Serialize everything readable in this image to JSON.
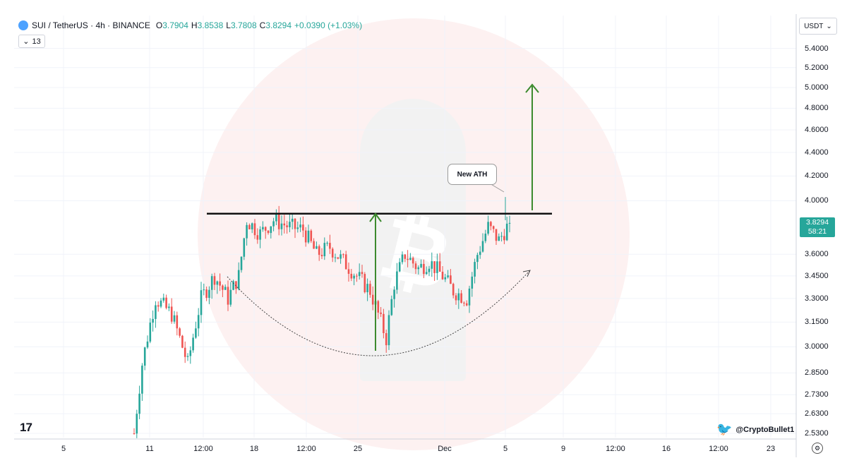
{
  "header": {
    "symbol": "SUI / TetherUS · 4h · BINANCE",
    "open_label": "O",
    "open": "3.7904",
    "high_label": "H",
    "high": "3.8538",
    "low_label": "L",
    "low": "3.7808",
    "close_label": "C",
    "close": "3.8294",
    "change": "+0.0390 (+1.03%)",
    "indicator_count": "13",
    "currency": "USDT"
  },
  "price_tag": {
    "price": "3.8294",
    "countdown": "58:21"
  },
  "annotation_label": "New ATH",
  "credit": "@CryptoBullet1",
  "logo": "17",
  "colors": {
    "up": "#26a69a",
    "down": "#ef5350",
    "arrow": "#3c8a2e",
    "resistance": "#111111"
  },
  "chart_data": {
    "type": "candlestick",
    "symbol": "SUI / TetherUS",
    "interval": "4h",
    "exchange": "BINANCE",
    "y_scale": "log",
    "ylim": [
      2.53,
      5.45
    ],
    "y_ticks": [
      "5.4000",
      "5.2000",
      "5.0000",
      "4.8000",
      "4.6000",
      "4.4000",
      "4.2000",
      "4.0000",
      "3.6000",
      "3.4500",
      "3.3000",
      "3.1500",
      "3.0000",
      "2.8500",
      "2.7300",
      "2.6300",
      "2.5300"
    ],
    "x_ticks": [
      "5",
      "11",
      "12:00",
      "18",
      "12:00",
      "25",
      "Dec",
      "5",
      "9",
      "12:00",
      "16",
      "12:00",
      "23"
    ],
    "resistance_level": 3.9,
    "last_price": 3.8294,
    "series": [
      {
        "t": 0,
        "y": 2.53
      },
      {
        "t": 3,
        "y": 2.9
      },
      {
        "t": 8,
        "y": 3.3
      },
      {
        "t": 14,
        "y": 3.2
      },
      {
        "t": 20,
        "y": 2.9
      },
      {
        "t": 25,
        "y": 3.3
      },
      {
        "t": 30,
        "y": 3.45
      },
      {
        "t": 35,
        "y": 3.3
      },
      {
        "t": 39,
        "y": 3.45
      },
      {
        "t": 42,
        "y": 3.85
      },
      {
        "t": 47,
        "y": 3.75
      },
      {
        "t": 52,
        "y": 3.85
      },
      {
        "t": 58,
        "y": 3.8
      },
      {
        "t": 63,
        "y": 3.78
      },
      {
        "t": 68,
        "y": 3.6
      },
      {
        "t": 73,
        "y": 3.65
      },
      {
        "t": 78,
        "y": 3.55
      },
      {
        "t": 83,
        "y": 3.45
      },
      {
        "t": 88,
        "y": 3.35
      },
      {
        "t": 92,
        "y": 3.15
      },
      {
        "t": 94,
        "y": 3.05
      },
      {
        "t": 97,
        "y": 3.4
      },
      {
        "t": 101,
        "y": 3.6
      },
      {
        "t": 106,
        "y": 3.5
      },
      {
        "t": 110,
        "y": 3.55
      },
      {
        "t": 115,
        "y": 3.45
      },
      {
        "t": 119,
        "y": 3.35
      },
      {
        "t": 124,
        "y": 3.3
      },
      {
        "t": 128,
        "y": 3.6
      },
      {
        "t": 132,
        "y": 3.8
      },
      {
        "t": 136,
        "y": 3.7
      },
      {
        "t": 140,
        "y": 3.8294
      }
    ],
    "annotations": [
      "New ATH"
    ]
  }
}
